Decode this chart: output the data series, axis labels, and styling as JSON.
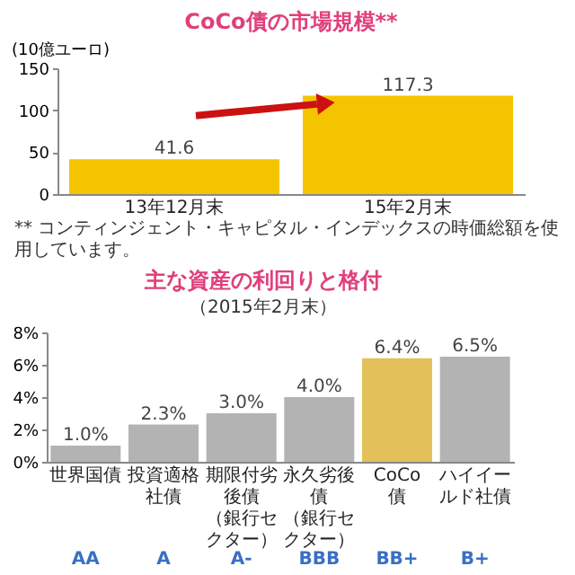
{
  "chart_data": [
    {
      "type": "bar",
      "title": "CoCo債の市場規模**",
      "ylabel": "(10億ユーロ)",
      "categories": [
        "13年12月末",
        "15年2月末"
      ],
      "values": [
        41.6,
        117.3
      ],
      "color": "#f5c400",
      "data_labels": true,
      "ylim": [
        0,
        150
      ],
      "yticks": [
        0,
        50,
        100,
        150
      ],
      "annotations": [
        "** コンティンジェント・キャピタル・インデックスの時価総額を使用しています。"
      ]
    },
    {
      "type": "bar",
      "title": "主な資産の利回りと格付",
      "subtitle": "（2015年2月末）",
      "categories": [
        "世界国債",
        "投資適格社債",
        "期限付劣後債（銀行セクター）",
        "永久劣後債（銀行セクター）",
        "CoCo債",
        "ハイイールド社債"
      ],
      "values": [
        1.0,
        2.3,
        3.0,
        4.0,
        6.4,
        6.5
      ],
      "colors": [
        "#b3b3b3",
        "#b3b3b3",
        "#b3b3b3",
        "#b3b3b3",
        "#e2c15a",
        "#b3b3b3"
      ],
      "value_labels": [
        "1.0%",
        "2.3%",
        "3.0%",
        "4.0%",
        "6.4%",
        "6.5%"
      ],
      "ylim": [
        0,
        8
      ],
      "yticks": [
        {
          "value": 0,
          "label": "0%"
        },
        {
          "value": 2,
          "label": "2%"
        },
        {
          "value": 4,
          "label": "4%"
        },
        {
          "value": 6,
          "label": "6%"
        },
        {
          "value": 8,
          "label": "8%"
        }
      ],
      "annotations": [
        "AA",
        "A",
        "A-",
        "BBB",
        "BB+",
        "B+"
      ]
    }
  ]
}
